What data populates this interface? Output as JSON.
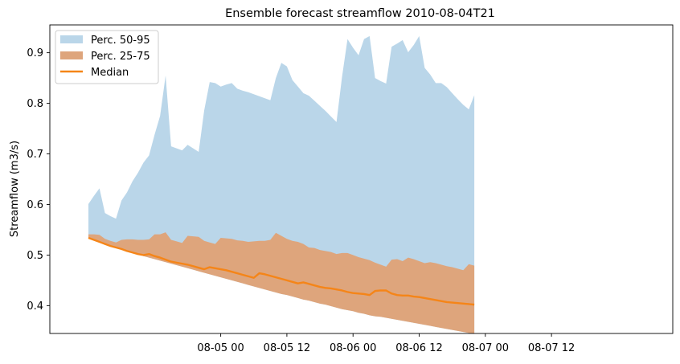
{
  "chart_data": {
    "type": "area",
    "title": "Ensemble forecast streamflow 2010-08-04T21",
    "xlabel": "",
    "ylabel": "Streamflow (m3/s)",
    "x_hours_from_start": [
      0,
      1,
      2,
      3,
      4,
      5,
      6,
      7,
      8,
      9,
      10,
      11,
      12,
      13,
      14,
      15,
      16,
      17,
      18,
      19,
      20,
      21,
      22,
      23,
      24,
      25,
      26,
      27,
      28,
      29,
      30,
      31,
      32,
      33,
      34,
      35,
      36,
      37,
      38,
      39,
      40,
      41,
      42,
      43,
      44,
      45,
      46,
      47,
      48,
      49,
      50,
      51,
      52,
      53,
      54,
      55,
      56,
      57,
      58,
      59,
      60,
      61,
      62,
      63,
      64,
      65,
      66,
      67,
      68,
      69,
      70
    ],
    "x_start": "2010-08-04T21",
    "x_range": [
      "2010-08-04T14",
      "2010-08-08T07"
    ],
    "ylim": [
      0.345,
      0.955
    ],
    "x_ticks": [
      "08-05 00",
      "08-05 12",
      "08-06 00",
      "08-06 12",
      "08-07 00",
      "08-07 12"
    ],
    "x_tick_hours": [
      24,
      36,
      48,
      60,
      72,
      84
    ],
    "y_ticks": [
      "0.4",
      "0.5",
      "0.6",
      "0.7",
      "0.8",
      "0.9"
    ],
    "y_tick_values": [
      0.4,
      0.5,
      0.6,
      0.7,
      0.8,
      0.9
    ],
    "series": [
      {
        "name": "Perc. 50-95",
        "kind": "band",
        "color": "#bad6e9",
        "lower": [
          0.534,
          0.53,
          0.526,
          0.522,
          0.518,
          0.515,
          0.512,
          0.508,
          0.505,
          0.502,
          0.498,
          0.495,
          0.492,
          0.489,
          0.486,
          0.483,
          0.48,
          0.477,
          0.474,
          0.471,
          0.468,
          0.465,
          0.462,
          0.459,
          0.456,
          0.453,
          0.45,
          0.447,
          0.444,
          0.441,
          0.438,
          0.435,
          0.432,
          0.429,
          0.426,
          0.423,
          0.421,
          0.418,
          0.415,
          0.412,
          0.41,
          0.407,
          0.404,
          0.402,
          0.399,
          0.396,
          0.393,
          0.391,
          0.389,
          0.386,
          0.384,
          0.381,
          0.379,
          0.378,
          0.376,
          0.374,
          0.372,
          0.37,
          0.368,
          0.366,
          0.364,
          0.362,
          0.36,
          0.358,
          0.356,
          0.354,
          0.352,
          0.35,
          0.348,
          0.346,
          0.344
        ],
        "upper": [
          0.601,
          0.617,
          0.632,
          0.583,
          0.577,
          0.572,
          0.608,
          0.624,
          0.646,
          0.663,
          0.683,
          0.697,
          0.738,
          0.775,
          0.855,
          0.715,
          0.711,
          0.707,
          0.718,
          0.711,
          0.704,
          0.786,
          0.842,
          0.84,
          0.833,
          0.837,
          0.84,
          0.829,
          0.825,
          0.822,
          0.818,
          0.814,
          0.81,
          0.806,
          0.85,
          0.88,
          0.873,
          0.846,
          0.833,
          0.82,
          0.815,
          0.805,
          0.795,
          0.785,
          0.774,
          0.763,
          0.852,
          0.927,
          0.91,
          0.895,
          0.927,
          0.933,
          0.85,
          0.844,
          0.839,
          0.912,
          0.918,
          0.925,
          0.901,
          0.915,
          0.933,
          0.87,
          0.857,
          0.84,
          0.84,
          0.832,
          0.82,
          0.808,
          0.797,
          0.788,
          0.816
        ]
      },
      {
        "name": "Perc. 25-75",
        "kind": "band",
        "color": "#dea57c",
        "lower": [
          0.534,
          0.53,
          0.526,
          0.522,
          0.518,
          0.515,
          0.512,
          0.508,
          0.505,
          0.502,
          0.498,
          0.495,
          0.492,
          0.489,
          0.486,
          0.483,
          0.48,
          0.477,
          0.474,
          0.471,
          0.468,
          0.465,
          0.462,
          0.459,
          0.456,
          0.453,
          0.45,
          0.447,
          0.444,
          0.441,
          0.438,
          0.435,
          0.432,
          0.429,
          0.426,
          0.423,
          0.421,
          0.418,
          0.415,
          0.412,
          0.41,
          0.407,
          0.404,
          0.402,
          0.399,
          0.396,
          0.393,
          0.391,
          0.389,
          0.386,
          0.384,
          0.381,
          0.379,
          0.378,
          0.376,
          0.374,
          0.372,
          0.37,
          0.368,
          0.366,
          0.364,
          0.362,
          0.36,
          0.358,
          0.356,
          0.354,
          0.352,
          0.35,
          0.348,
          0.346,
          0.344
        ],
        "upper": [
          0.541,
          0.541,
          0.54,
          0.532,
          0.528,
          0.525,
          0.53,
          0.531,
          0.531,
          0.53,
          0.53,
          0.531,
          0.541,
          0.541,
          0.545,
          0.53,
          0.527,
          0.524,
          0.538,
          0.537,
          0.536,
          0.528,
          0.525,
          0.522,
          0.534,
          0.533,
          0.532,
          0.529,
          0.528,
          0.526,
          0.527,
          0.528,
          0.528,
          0.53,
          0.544,
          0.538,
          0.532,
          0.528,
          0.526,
          0.522,
          0.515,
          0.514,
          0.51,
          0.508,
          0.506,
          0.502,
          0.504,
          0.504,
          0.5,
          0.496,
          0.493,
          0.49,
          0.485,
          0.481,
          0.477,
          0.491,
          0.492,
          0.488,
          0.495,
          0.492,
          0.488,
          0.484,
          0.486,
          0.484,
          0.481,
          0.478,
          0.476,
          0.473,
          0.47,
          0.482,
          0.479
        ]
      },
      {
        "name": "Median",
        "kind": "line",
        "color": "#f58518",
        "values": [
          0.534,
          0.53,
          0.526,
          0.522,
          0.518,
          0.515,
          0.512,
          0.508,
          0.505,
          0.502,
          0.5,
          0.502,
          0.498,
          0.495,
          0.491,
          0.487,
          0.485,
          0.483,
          0.481,
          0.478,
          0.475,
          0.472,
          0.476,
          0.474,
          0.472,
          0.47,
          0.467,
          0.464,
          0.461,
          0.458,
          0.455,
          0.464,
          0.462,
          0.459,
          0.456,
          0.453,
          0.45,
          0.447,
          0.444,
          0.446,
          0.443,
          0.44,
          0.437,
          0.435,
          0.434,
          0.432,
          0.43,
          0.427,
          0.425,
          0.424,
          0.423,
          0.421,
          0.429,
          0.43,
          0.43,
          0.424,
          0.421,
          0.42,
          0.42,
          0.418,
          0.417,
          0.415,
          0.413,
          0.411,
          0.409,
          0.407,
          0.406,
          0.405,
          0.404,
          0.403,
          0.402
        ]
      }
    ],
    "legend_position": "top-left",
    "grid": false
  }
}
